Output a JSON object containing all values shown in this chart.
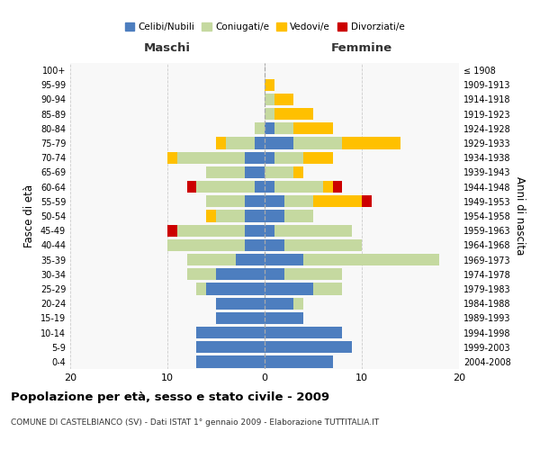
{
  "age_groups": [
    "0-4",
    "5-9",
    "10-14",
    "15-19",
    "20-24",
    "25-29",
    "30-34",
    "35-39",
    "40-44",
    "45-49",
    "50-54",
    "55-59",
    "60-64",
    "65-69",
    "70-74",
    "75-79",
    "80-84",
    "85-89",
    "90-94",
    "95-99",
    "100+"
  ],
  "birth_years": [
    "2004-2008",
    "1999-2003",
    "1994-1998",
    "1989-1993",
    "1984-1988",
    "1979-1983",
    "1974-1978",
    "1969-1973",
    "1964-1968",
    "1959-1963",
    "1954-1958",
    "1949-1953",
    "1944-1948",
    "1939-1943",
    "1934-1938",
    "1929-1933",
    "1924-1928",
    "1919-1923",
    "1914-1918",
    "1909-1913",
    "≤ 1908"
  ],
  "colors": {
    "celibi": "#4d7ebf",
    "coniugati": "#c5d9a0",
    "vedovi": "#ffc000",
    "divorziati": "#cc0000"
  },
  "maschi": {
    "celibi": [
      7,
      7,
      7,
      5,
      5,
      6,
      5,
      3,
      2,
      2,
      2,
      2,
      1,
      2,
      2,
      1,
      0,
      0,
      0,
      0,
      0
    ],
    "coniugati": [
      0,
      0,
      0,
      0,
      0,
      1,
      3,
      5,
      8,
      7,
      3,
      4,
      6,
      4,
      7,
      3,
      1,
      0,
      0,
      0,
      0
    ],
    "vedovi": [
      0,
      0,
      0,
      0,
      0,
      0,
      0,
      0,
      0,
      0,
      1,
      0,
      0,
      0,
      1,
      1,
      0,
      0,
      0,
      0,
      0
    ],
    "divorziati": [
      0,
      0,
      0,
      0,
      0,
      0,
      0,
      0,
      0,
      1,
      0,
      0,
      1,
      0,
      0,
      0,
      0,
      0,
      0,
      0,
      0
    ]
  },
  "femmine": {
    "celibi": [
      7,
      9,
      8,
      4,
      3,
      5,
      2,
      4,
      2,
      1,
      2,
      2,
      1,
      0,
      1,
      3,
      1,
      0,
      0,
      0,
      0
    ],
    "coniugati": [
      0,
      0,
      0,
      0,
      1,
      3,
      6,
      14,
      8,
      8,
      3,
      3,
      5,
      3,
      3,
      5,
      2,
      1,
      1,
      0,
      0
    ],
    "vedovi": [
      0,
      0,
      0,
      0,
      0,
      0,
      0,
      0,
      0,
      0,
      0,
      5,
      1,
      1,
      3,
      6,
      4,
      4,
      2,
      1,
      0
    ],
    "divorziati": [
      0,
      0,
      0,
      0,
      0,
      0,
      0,
      0,
      0,
      0,
      0,
      1,
      1,
      0,
      0,
      0,
      0,
      0,
      0,
      0,
      0
    ]
  },
  "xlim": 20,
  "title": "Popolazione per età, sesso e stato civile - 2009",
  "subtitle": "COMUNE DI CASTELBIANCO (SV) - Dati ISTAT 1° gennaio 2009 - Elaborazione TUTTITALIA.IT",
  "xlabel_left": "Maschi",
  "xlabel_right": "Femmine",
  "ylabel_left": "Fasce di età",
  "ylabel_right": "Anni di nascita",
  "legend_labels": [
    "Celibi/Nubili",
    "Coniugati/e",
    "Vedovi/e",
    "Divorziati/e"
  ]
}
